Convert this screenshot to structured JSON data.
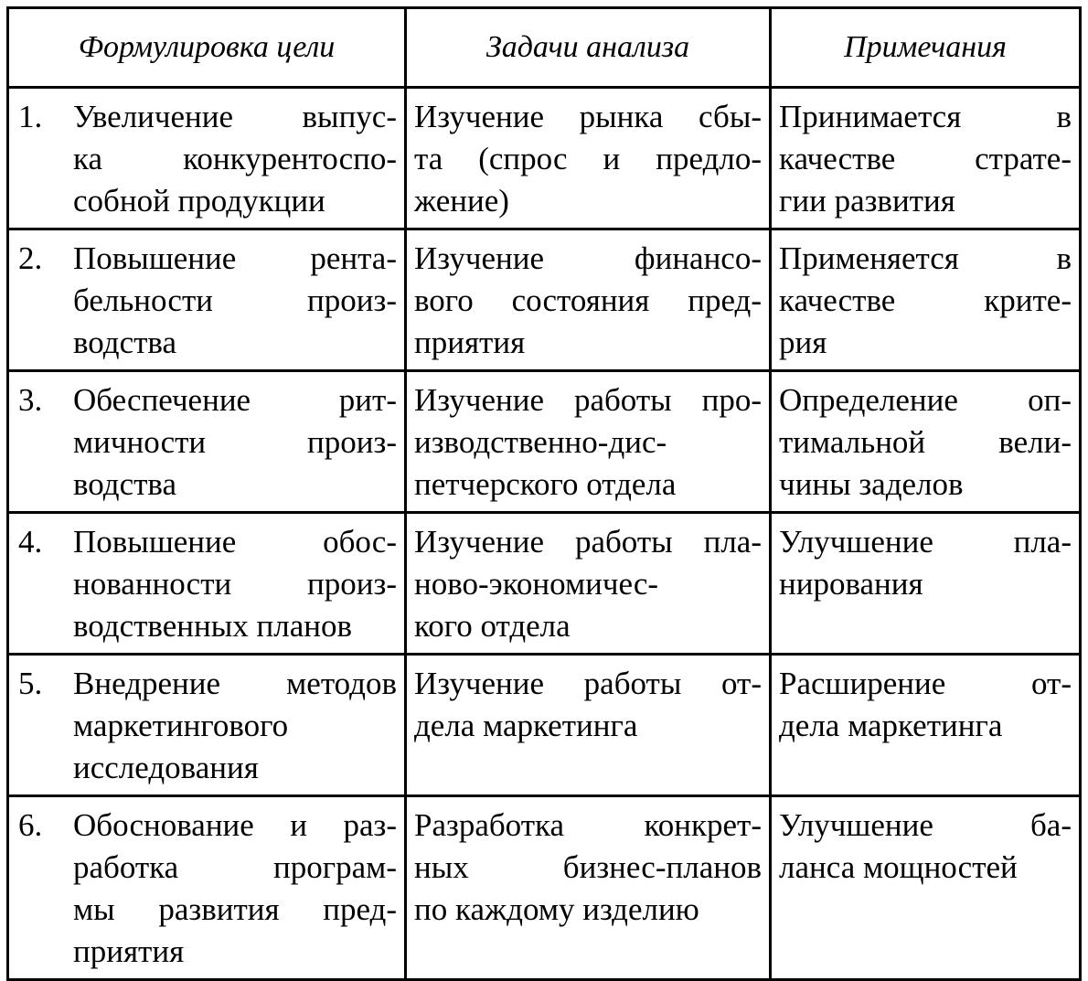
{
  "headers": [
    "Формулировка цели",
    "Задачи анализа",
    "Примечания"
  ],
  "rows": [
    {
      "num": "1.",
      "goal": [
        "Увеличение выпус-",
        "ка конкурентоспо-",
        "собной продукции"
      ],
      "task": [
        "Изучение рынка сбы-",
        "та (спрос и предло-",
        "жение)"
      ],
      "note": [
        "Принимается в",
        "качестве страте-",
        "гии развития"
      ]
    },
    {
      "num": "2.",
      "goal": [
        "Повышение рента-",
        "бельности произ-",
        "водства"
      ],
      "task": [
        "Изучение финансо-",
        "вого состояния пред-",
        "приятия"
      ],
      "note": [
        "Применяется в",
        "качестве крите-",
        "рия"
      ]
    },
    {
      "num": "3.",
      "goal": [
        "Обеспечение рит-",
        "мичности произ-",
        "водства"
      ],
      "task": [
        "Изучение работы про-",
        "изводственно-дис-",
        "петчерского отдела"
      ],
      "note": [
        "Определение оп-",
        "тимальной вели-",
        "чины заделов"
      ]
    },
    {
      "num": "4.",
      "goal": [
        "Повышение обос-",
        "нованности произ-",
        "водственных планов"
      ],
      "task": [
        "Изучение работы пла-",
        "ново-экономичес-",
        "кого отдела"
      ],
      "note": [
        "Улучшение пла-",
        "нирования"
      ]
    },
    {
      "num": "5.",
      "goal": [
        "Внедрение методов",
        "маркетингового",
        "исследования"
      ],
      "task": [
        "Изучение работы от-",
        "дела маркетинга"
      ],
      "note": [
        "Расширение от-",
        "дела маркетинга"
      ]
    },
    {
      "num": "6.",
      "goal": [
        "Обоснование и раз-",
        "работка програм-",
        "мы развития пред-",
        "приятия"
      ],
      "task": [
        "Разработка конкрет-",
        "ных бизнес-планов",
        "по каждому изделию"
      ],
      "note": [
        "Улучшение ба-",
        "ланса мощностей"
      ]
    }
  ]
}
